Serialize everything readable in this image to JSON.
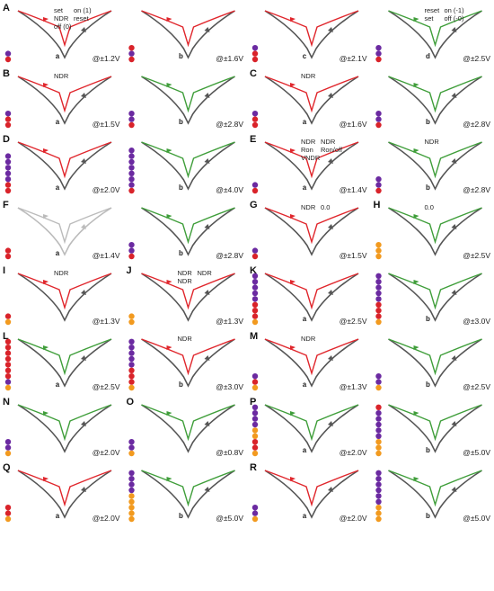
{
  "colors": {
    "red_branch": "#e0262c",
    "green_branch": "#3f9e3a",
    "gray_branch": "#555555",
    "bead_red": "#d9232a",
    "bead_purple": "#6b2aa1",
    "bead_orange": "#f29a1f",
    "light_gray": "#bbbbbb"
  },
  "chart_data": [
    {
      "type": "line",
      "panel": "A",
      "sub": "a",
      "voltage": "@±1.2V",
      "color": "red",
      "beads": [
        "p",
        "r"
      ],
      "annotations": [
        "set",
        "on (1)",
        "NDR",
        "reset",
        "off (0)"
      ]
    },
    {
      "type": "line",
      "panel": "",
      "sub": "b",
      "voltage": "@±1.6V",
      "color": "red",
      "beads": [
        "r",
        "p",
        "r"
      ]
    },
    {
      "type": "line",
      "panel": "",
      "sub": "c",
      "voltage": "@±2.1V",
      "color": "red",
      "beads": [
        "p",
        "r",
        "r"
      ]
    },
    {
      "type": "line",
      "panel": "",
      "sub": "d",
      "voltage": "@±2.5V",
      "color": "green",
      "beads": [
        "p",
        "p",
        "r"
      ],
      "annotations": [
        "reset",
        "on (-1)",
        "set",
        "off (-0)"
      ]
    },
    {
      "type": "line",
      "panel": "B",
      "sub": "a",
      "voltage": "@±1.5V",
      "color": "red",
      "beads": [
        "p",
        "r",
        "r"
      ],
      "annotations": [
        "NDR"
      ]
    },
    {
      "type": "line",
      "panel": "",
      "sub": "b",
      "voltage": "@±2.8V",
      "color": "green",
      "beads": [
        "p",
        "p",
        "r"
      ]
    },
    {
      "type": "line",
      "panel": "C",
      "sub": "a",
      "voltage": "@±1.6V",
      "color": "red",
      "beads": [
        "p",
        "r",
        "r"
      ],
      "annotations": [
        "NDR"
      ]
    },
    {
      "type": "line",
      "panel": "",
      "sub": "b",
      "voltage": "@±2.8V",
      "color": "green",
      "beads": [
        "p",
        "p",
        "r"
      ]
    },
    {
      "type": "line",
      "panel": "D",
      "sub": "a",
      "voltage": "@±2.0V",
      "color": "red",
      "beads": [
        "p",
        "p",
        "p",
        "p",
        "p",
        "r",
        "r"
      ]
    },
    {
      "type": "line",
      "panel": "",
      "sub": "b",
      "voltage": "@±4.0V",
      "color": "green",
      "beads": [
        "p",
        "p",
        "p",
        "p",
        "p",
        "p",
        "p",
        "r"
      ]
    },
    {
      "type": "line",
      "panel": "E",
      "sub": "a",
      "voltage": "@±1.4V",
      "color": "red",
      "beads": [
        "p",
        "r"
      ],
      "annotations": [
        "NDR",
        "NDR",
        "Ron",
        "Ron/off",
        "VNDR"
      ]
    },
    {
      "type": "line",
      "panel": "",
      "sub": "b",
      "voltage": "@±2.8V",
      "color": "green",
      "beads": [
        "p",
        "p",
        "r"
      ],
      "annotations": [
        "NDR"
      ]
    },
    {
      "type": "line",
      "panel": "F",
      "sub": "a",
      "voltage": "@±1.4V",
      "color": "gray",
      "beads": [
        "r",
        "r"
      ]
    },
    {
      "type": "line",
      "panel": "",
      "sub": "b",
      "voltage": "@±2.8V",
      "color": "green",
      "beads": [
        "p",
        "p",
        "r"
      ]
    },
    {
      "type": "line",
      "panel": "G",
      "sub": "",
      "voltage": "@±1.5V",
      "color": "red",
      "beads": [
        "p",
        "r"
      ],
      "annotations": [
        "NDR",
        "0.0"
      ]
    },
    {
      "type": "line",
      "panel": "H",
      "sub": "",
      "voltage": "@±2.5V",
      "color": "green",
      "beads": [
        "o",
        "o",
        "o"
      ],
      "annotations": [
        "0.0"
      ]
    },
    {
      "type": "line",
      "panel": "I",
      "sub": "",
      "voltage": "@±1.3V",
      "color": "red",
      "beads": [
        "r",
        "o"
      ],
      "annotations": [
        "NDR"
      ]
    },
    {
      "type": "line",
      "panel": "J",
      "sub": "",
      "voltage": "@±1.3V",
      "color": "red",
      "beads": [
        "o",
        "o"
      ],
      "annotations": [
        "NDR",
        "NDR",
        "NDR"
      ]
    },
    {
      "type": "line",
      "panel": "K",
      "sub": "a",
      "voltage": "@±2.5V",
      "color": "red",
      "beads": [
        "p",
        "p",
        "p",
        "p",
        "p",
        "r",
        "r",
        "r",
        "o"
      ]
    },
    {
      "type": "line",
      "panel": "",
      "sub": "b",
      "voltage": "@±3.0V",
      "color": "green",
      "beads": [
        "p",
        "p",
        "p",
        "p",
        "p",
        "r",
        "r",
        "r",
        "o"
      ]
    },
    {
      "type": "line",
      "panel": "L",
      "sub": "a",
      "voltage": "@±2.5V",
      "color": "green",
      "beads": [
        "r",
        "r",
        "r",
        "r",
        "r",
        "r",
        "r",
        "p",
        "o"
      ]
    },
    {
      "type": "line",
      "panel": "",
      "sub": "b",
      "voltage": "@±3.0V",
      "color": "red",
      "beads": [
        "p",
        "p",
        "p",
        "p",
        "p",
        "r",
        "r",
        "r",
        "o"
      ],
      "annotations": [
        "NDR"
      ]
    },
    {
      "type": "line",
      "panel": "M",
      "sub": "a",
      "voltage": "@±1.3V",
      "color": "red",
      "beads": [
        "p",
        "r",
        "o"
      ],
      "annotations": [
        "NDR"
      ]
    },
    {
      "type": "line",
      "panel": "",
      "sub": "b",
      "voltage": "@±2.5V",
      "color": "green",
      "beads": [
        "p",
        "p",
        "o"
      ]
    },
    {
      "type": "line",
      "panel": "N",
      "sub": "",
      "voltage": "@±2.0V",
      "color": "green",
      "beads": [
        "p",
        "p",
        "o"
      ]
    },
    {
      "type": "line",
      "panel": "O",
      "sub": "",
      "voltage": "@±0.8V",
      "color": "green",
      "beads": [
        "p",
        "p",
        "o"
      ]
    },
    {
      "type": "line",
      "panel": "P",
      "sub": "a",
      "voltage": "@±2.0V",
      "color": "green",
      "beads": [
        "p",
        "p",
        "p",
        "p",
        "o",
        "o",
        "r",
        "r",
        "o"
      ]
    },
    {
      "type": "line",
      "panel": "",
      "sub": "b",
      "voltage": "@±5.0V",
      "color": "green",
      "beads": [
        "r",
        "p",
        "p",
        "p",
        "p",
        "p",
        "o",
        "o",
        "o"
      ]
    },
    {
      "type": "line",
      "panel": "Q",
      "sub": "a",
      "voltage": "@±2.0V",
      "color": "red",
      "beads": [
        "r",
        "r",
        "o"
      ]
    },
    {
      "type": "line",
      "panel": "",
      "sub": "b",
      "voltage": "@±5.0V",
      "color": "green",
      "beads": [
        "p",
        "p",
        "p",
        "p",
        "o",
        "o",
        "o",
        "o",
        "o"
      ]
    },
    {
      "type": "line",
      "panel": "R",
      "sub": "a",
      "voltage": "@±2.0V",
      "color": "red",
      "beads": [
        "p",
        "p",
        "o"
      ]
    },
    {
      "type": "line",
      "panel": "",
      "sub": "b",
      "voltage": "@±5.0V",
      "color": "green",
      "beads": [
        "p",
        "p",
        "p",
        "p",
        "p",
        "p",
        "o",
        "o",
        "o"
      ]
    }
  ]
}
